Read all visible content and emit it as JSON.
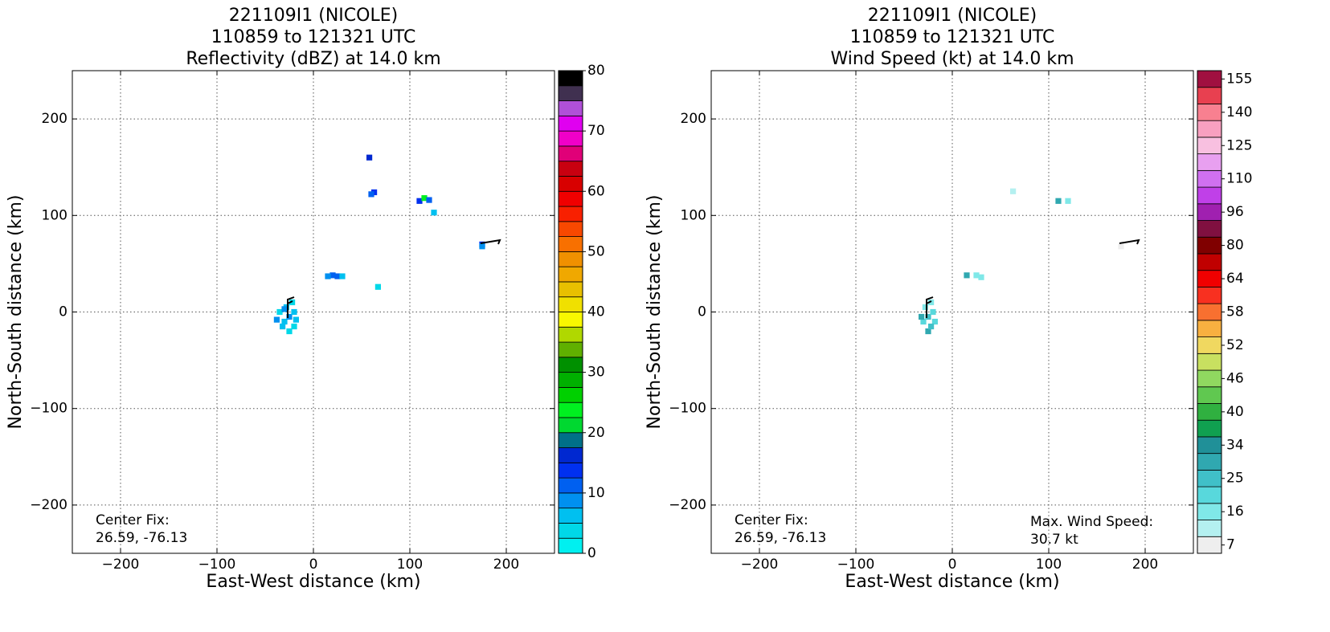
{
  "chart_data": [
    {
      "type": "heatmap",
      "title": [
        "221109I1 (NICOLE)",
        "110859 to 121321 UTC",
        "Reflectivity (dBZ) at 14.0 km"
      ],
      "xlabel": "East-West distance (km)",
      "ylabel": "North-South distance (km)",
      "xlim": [
        -250,
        250
      ],
      "ylim": [
        -250,
        250
      ],
      "xticks": [
        {
          "value": -200,
          "label": "−200"
        },
        {
          "value": -100,
          "label": "−100"
        },
        0,
        100,
        200
      ],
      "yticks": [
        {
          "value": -200,
          "label": "−200"
        },
        {
          "value": -100,
          "label": "−100"
        },
        0,
        100,
        200
      ],
      "grid": true,
      "x": [
        -30,
        -25,
        -20,
        -35,
        -28,
        -22,
        -32,
        -25,
        -18,
        -38,
        -30,
        -20,
        20,
        15,
        25,
        30,
        67,
        58,
        63,
        60,
        110,
        115,
        120,
        125,
        175,
        175
      ],
      "y": [
        -10,
        -5,
        0,
        0,
        5,
        10,
        -15,
        -20,
        -8,
        -8,
        3,
        -15,
        38,
        37,
        37,
        37,
        26,
        160,
        124,
        122,
        115,
        118,
        116,
        103,
        70,
        68
      ],
      "values": [
        5,
        7.5,
        5,
        2.5,
        5,
        2.5,
        5,
        2.5,
        5,
        7.5,
        7.5,
        2.5,
        10,
        7.5,
        10,
        5,
        2.5,
        15,
        12.5,
        10,
        12.5,
        22.5,
        10,
        5,
        12.5,
        7.5
      ],
      "annotations": [
        "Center Fix:",
        "26.59, -76.13"
      ],
      "colorbar": {
        "bounds": [
          0,
          2.5,
          5,
          7.5,
          10,
          12.5,
          15,
          17.5,
          20,
          22.5,
          25,
          27.5,
          30,
          32.5,
          35,
          37.5,
          40,
          42.5,
          45,
          47.5,
          50,
          52.5,
          55,
          57.5,
          60,
          62.5,
          65,
          67.5,
          70,
          72.5,
          75,
          77.5,
          80
        ],
        "colors": [
          "#00f0f0",
          "#00d8e8",
          "#00c0f0",
          "#0090f0",
          "#0060f0",
          "#0030f0",
          "#0028d0",
          "#007088",
          "#00d830",
          "#00f020",
          "#00d000",
          "#00b000",
          "#009000",
          "#60b000",
          "#b0d800",
          "#f8f800",
          "#f0e000",
          "#e8c000",
          "#f0a800",
          "#f09000",
          "#f87000",
          "#f84800",
          "#f82000",
          "#f00000",
          "#d80000",
          "#c80010",
          "#e00078",
          "#f000c8",
          "#e000f0",
          "#b050d8",
          "#403050",
          "#000000"
        ],
        "ticks": [
          0,
          10,
          20,
          30,
          40,
          50,
          60,
          70,
          80
        ]
      }
    },
    {
      "type": "heatmap",
      "title": [
        "221109I1 (NICOLE)",
        "110859 to 121321 UTC",
        "Wind Speed (kt) at 14.0 km"
      ],
      "xlabel": "East-West distance (km)",
      "ylabel": "North-South distance (km)",
      "xlim": [
        -250,
        250
      ],
      "ylim": [
        -250,
        250
      ],
      "xticks": [
        {
          "value": -200,
          "label": "−200"
        },
        {
          "value": -100,
          "label": "−100"
        },
        0,
        100,
        200
      ],
      "yticks": [
        {
          "value": -200,
          "label": "−200"
        },
        {
          "value": -100,
          "label": "−100"
        },
        0,
        100,
        200
      ],
      "grid": true,
      "x": [
        -25,
        -30,
        -20,
        -28,
        -22,
        -25,
        -32,
        -18,
        -22,
        15,
        25,
        30,
        63,
        110,
        120,
        175
      ],
      "y": [
        -5,
        -10,
        0,
        5,
        10,
        -20,
        -5,
        -10,
        -15,
        38,
        38,
        36,
        125,
        115,
        115,
        68
      ],
      "values": [
        25,
        22,
        20,
        18,
        16,
        28,
        30,
        20,
        27,
        30,
        16,
        18,
        10,
        28,
        14,
        8
      ],
      "annotations": [
        "Center Fix:",
        "26.59, -76.13",
        "Max. Wind Speed:",
        "30.7 kt"
      ],
      "colorbar": {
        "levels": [
          7,
          11.5,
          16,
          20.5,
          25,
          29.5,
          34,
          37,
          40,
          43,
          46,
          49,
          52,
          55,
          58,
          61,
          64,
          72,
          80,
          88,
          96,
          103,
          110,
          117.5,
          125,
          132.5,
          140,
          147.5,
          155
        ],
        "colors": [
          "#eeeeee",
          "#b4f0f0",
          "#80e8e8",
          "#58d8dc",
          "#40c0c8",
          "#30a8b0",
          "#209098",
          "#10a050",
          "#30b040",
          "#60c850",
          "#90d860",
          "#c8e060",
          "#f0d860",
          "#f8b040",
          "#f87030",
          "#f83020",
          "#f00000",
          "#c00000",
          "#800000",
          "#801040",
          "#a020b0",
          "#c040e8",
          "#d070f0",
          "#e8a0f0",
          "#f8c0e0",
          "#f8a0c0",
          "#f88090",
          "#e84050",
          "#a01040"
        ],
        "ticks": [
          7,
          16,
          25,
          34,
          40,
          46,
          52,
          58,
          64,
          80,
          96,
          110,
          125,
          140,
          155
        ]
      }
    }
  ]
}
